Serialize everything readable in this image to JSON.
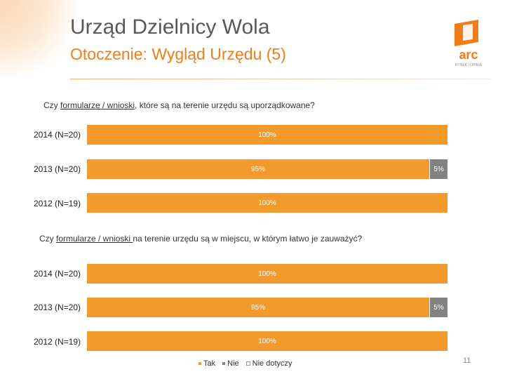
{
  "header": {
    "title": "Urząd Dzielnicy Wola",
    "subtitle": "Otoczenie: Wygląd Urzędu (5)",
    "logo_text": "arc",
    "logo_tagline": "RYNEK I OPINIA"
  },
  "colors": {
    "tak": "#f39a2c",
    "nie": "#828282",
    "nie_dotyczy": "#ffffff",
    "accent": "#ef7d1a"
  },
  "chart_data": [
    {
      "type": "bar",
      "orientation": "horizontal",
      "stacked": true,
      "question_before": "Czy ",
      "question_underlined": "formularze / wnioski",
      "question_after": ", które są na terenie urzędu są uporządkowane?",
      "categories": [
        "2014 (N=20)",
        "2013 (N=20)",
        "2012 (N=19)"
      ],
      "series": [
        {
          "name": "Tak",
          "values": [
            100,
            95,
            100
          ],
          "labels": [
            "100%",
            "95%",
            "100%"
          ]
        },
        {
          "name": "Nie",
          "values": [
            0,
            5,
            0
          ],
          "labels": [
            "",
            "5%",
            ""
          ]
        },
        {
          "name": "Nie dotyczy",
          "values": [
            0,
            0,
            0
          ],
          "labels": [
            "",
            "",
            ""
          ]
        }
      ],
      "xlim": [
        0,
        100
      ]
    },
    {
      "type": "bar",
      "orientation": "horizontal",
      "stacked": true,
      "question_before": "Czy ",
      "question_underlined": "formularze / wnioski ",
      "question_after": "na terenie urzędu są w miejscu, w którym łatwo je zauważyć?",
      "categories": [
        "2014 (N=20)",
        "2013 (N=20)",
        "2012 (N=19)"
      ],
      "series": [
        {
          "name": "Tak",
          "values": [
            100,
            95,
            100
          ],
          "labels": [
            "100%",
            "95%",
            "100%"
          ]
        },
        {
          "name": "Nie",
          "values": [
            0,
            5,
            0
          ],
          "labels": [
            "",
            "5%",
            ""
          ]
        },
        {
          "name": "Nie dotyczy",
          "values": [
            0,
            0,
            0
          ],
          "labels": [
            "",
            "",
            ""
          ]
        }
      ],
      "xlim": [
        0,
        100
      ]
    }
  ],
  "legend": {
    "position": "bottom",
    "items": [
      "Tak",
      "Nie",
      "Nie dotyczy"
    ]
  },
  "page_number": "11"
}
